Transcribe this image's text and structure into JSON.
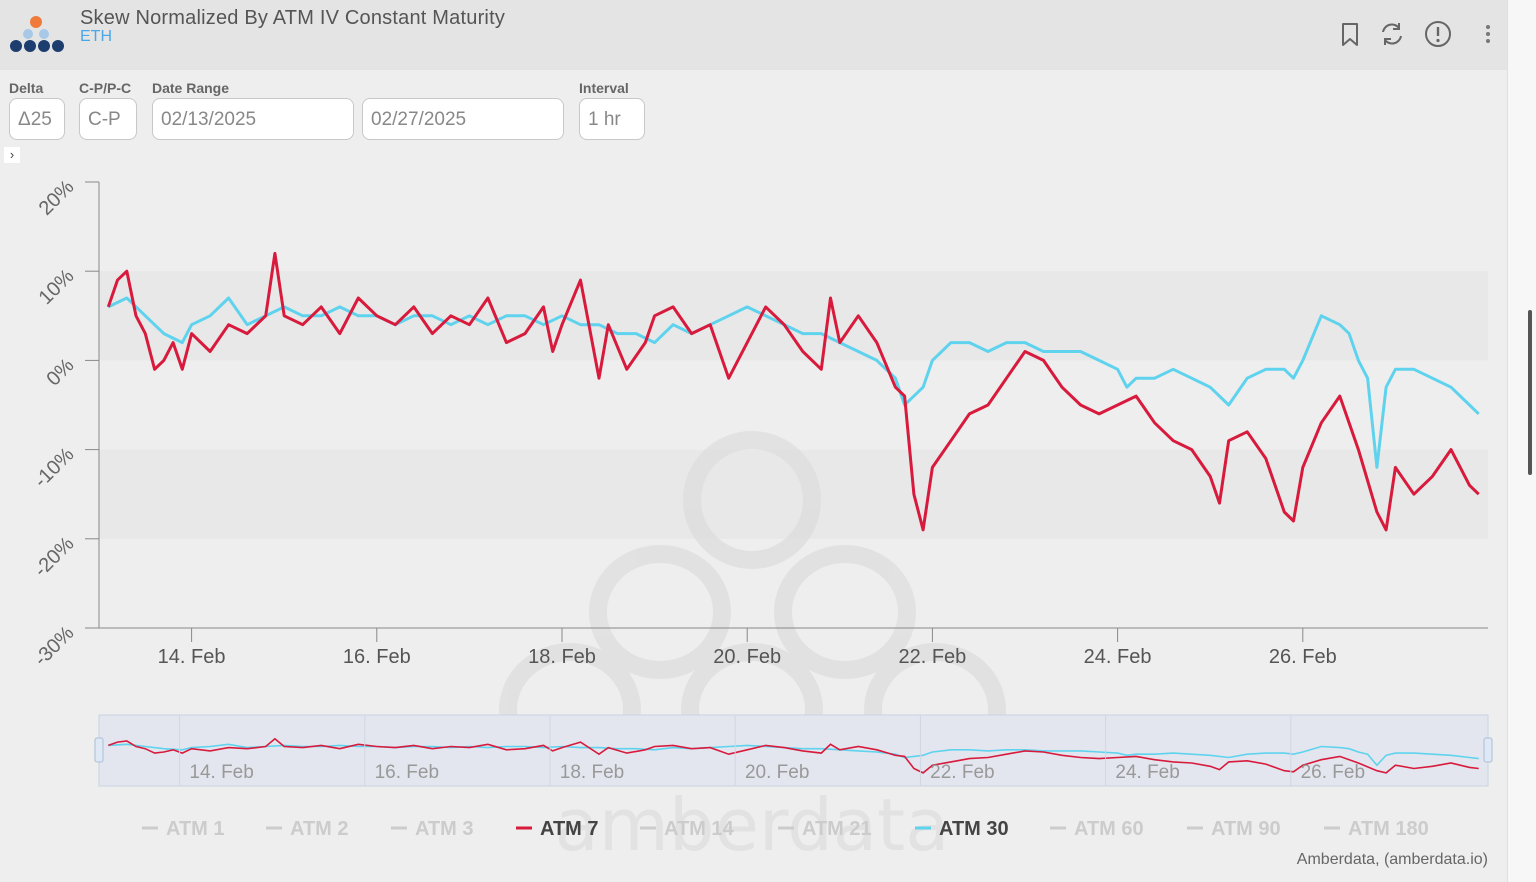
{
  "header": {
    "title": "Skew Normalized By ATM IV Constant Maturity",
    "subtitle": "ETH",
    "icons": [
      "bookmark-icon",
      "refresh-icon",
      "info-icon",
      "more-vertical-icon"
    ]
  },
  "controls": {
    "delta": {
      "label": "Delta",
      "value": "Δ25"
    },
    "cp": {
      "label": "C-P/P-C",
      "value": "C-P"
    },
    "date_range": {
      "label": "Date Range",
      "start": "02/13/2025",
      "end": "02/27/2025"
    },
    "interval": {
      "label": "Interval",
      "value": "1 hr"
    }
  },
  "watermark": "amberdata",
  "credit": "Amberdata, (amberdata.io)",
  "colors": {
    "atm7": "#d81a3c",
    "atm30": "#5fd3ee",
    "inactive": "#cccccc"
  },
  "chart_data": {
    "type": "line",
    "title": "Skew Normalized By ATM IV Constant Maturity",
    "xlabel": "",
    "ylabel": "",
    "x_range_days": [
      13.0,
      28.0
    ],
    "ylim": [
      -30,
      20
    ],
    "y_ticks": [
      20,
      10,
      0,
      -10,
      -20,
      -30
    ],
    "y_tick_labels": [
      "20%",
      "10%",
      "0%",
      "-10%",
      "-20%",
      "-30%"
    ],
    "x_ticks": [
      14,
      16,
      18,
      20,
      22,
      24,
      26
    ],
    "x_tick_labels": [
      "14. Feb",
      "16. Feb",
      "18. Feb",
      "20. Feb",
      "22. Feb",
      "24. Feb",
      "26. Feb"
    ],
    "legend": [
      "ATM 1",
      "ATM 2",
      "ATM 3",
      "ATM 7",
      "ATM 14",
      "ATM 21",
      "ATM 30",
      "ATM 60",
      "ATM 90",
      "ATM 180"
    ],
    "legend_active": [
      "ATM 7",
      "ATM 30"
    ],
    "legend_position": "bottom",
    "series": [
      {
        "name": "ATM 7",
        "x": [
          13.1,
          13.2,
          13.3,
          13.4,
          13.5,
          13.6,
          13.7,
          13.8,
          13.9,
          14.0,
          14.2,
          14.4,
          14.6,
          14.8,
          14.9,
          15.0,
          15.2,
          15.4,
          15.6,
          15.8,
          16.0,
          16.2,
          16.4,
          16.6,
          16.8,
          17.0,
          17.2,
          17.4,
          17.6,
          17.8,
          17.9,
          18.0,
          18.2,
          18.4,
          18.5,
          18.7,
          18.9,
          19.0,
          19.2,
          19.4,
          19.6,
          19.8,
          20.0,
          20.2,
          20.4,
          20.6,
          20.8,
          20.9,
          21.0,
          21.2,
          21.4,
          21.6,
          21.7,
          21.8,
          21.9,
          22.0,
          22.2,
          22.4,
          22.6,
          22.8,
          23.0,
          23.2,
          23.4,
          23.6,
          23.8,
          24.0,
          24.2,
          24.4,
          24.6,
          24.8,
          25.0,
          25.1,
          25.2,
          25.4,
          25.6,
          25.8,
          25.9,
          26.0,
          26.2,
          26.4,
          26.6,
          26.8,
          26.9,
          27.0,
          27.2,
          27.4,
          27.6,
          27.8,
          27.9
        ],
        "values": [
          6,
          9,
          10,
          5,
          3,
          -1,
          0,
          2,
          -1,
          3,
          1,
          4,
          3,
          5,
          12,
          5,
          4,
          6,
          3,
          7,
          5,
          4,
          6,
          3,
          5,
          4,
          7,
          2,
          3,
          6,
          1,
          4,
          9,
          -2,
          4,
          -1,
          2,
          5,
          6,
          3,
          4,
          -2,
          2,
          6,
          4,
          1,
          -1,
          7,
          2,
          5,
          2,
          -3,
          -4,
          -15,
          -19,
          -12,
          -9,
          -6,
          -5,
          -2,
          1,
          0,
          -3,
          -5,
          -6,
          -5,
          -4,
          -7,
          -9,
          -10,
          -13,
          -16,
          -9,
          -8,
          -11,
          -17,
          -18,
          -12,
          -7,
          -4,
          -10,
          -17,
          -19,
          -12,
          -15,
          -13,
          -10,
          -14,
          -15
        ]
      },
      {
        "name": "ATM 30",
        "x": [
          13.1,
          13.3,
          13.5,
          13.7,
          13.9,
          14.0,
          14.2,
          14.4,
          14.6,
          14.8,
          15.0,
          15.2,
          15.4,
          15.6,
          15.8,
          16.0,
          16.2,
          16.4,
          16.6,
          16.8,
          17.0,
          17.2,
          17.4,
          17.6,
          17.8,
          18.0,
          18.2,
          18.4,
          18.6,
          18.8,
          19.0,
          19.2,
          19.4,
          19.6,
          19.8,
          20.0,
          20.2,
          20.4,
          20.6,
          20.8,
          21.0,
          21.2,
          21.4,
          21.6,
          21.7,
          21.8,
          21.9,
          22.0,
          22.1,
          22.2,
          22.4,
          22.6,
          22.8,
          23.0,
          23.2,
          23.4,
          23.6,
          23.8,
          24.0,
          24.1,
          24.2,
          24.4,
          24.6,
          24.8,
          25.0,
          25.2,
          25.4,
          25.6,
          25.8,
          25.9,
          26.0,
          26.2,
          26.4,
          26.5,
          26.6,
          26.7,
          26.8,
          26.9,
          27.0,
          27.2,
          27.4,
          27.6,
          27.8,
          27.9
        ],
        "values": [
          6,
          7,
          5,
          3,
          2,
          4,
          5,
          7,
          4,
          5,
          6,
          5,
          5,
          6,
          5,
          5,
          4,
          5,
          5,
          4,
          5,
          4,
          5,
          5,
          4,
          5,
          4,
          4,
          3,
          3,
          2,
          4,
          3,
          4,
          5,
          6,
          5,
          4,
          3,
          3,
          2,
          1,
          0,
          -2,
          -5,
          -4,
          -3,
          0,
          1,
          2,
          2,
          1,
          2,
          2,
          1,
          1,
          1,
          0,
          -1,
          -3,
          -2,
          -2,
          -1,
          -2,
          -3,
          -5,
          -2,
          -1,
          -1,
          -2,
          0,
          5,
          4,
          3,
          0,
          -2,
          -12,
          -3,
          -1,
          -1,
          -2,
          -3,
          -5,
          -6
        ]
      }
    ]
  }
}
